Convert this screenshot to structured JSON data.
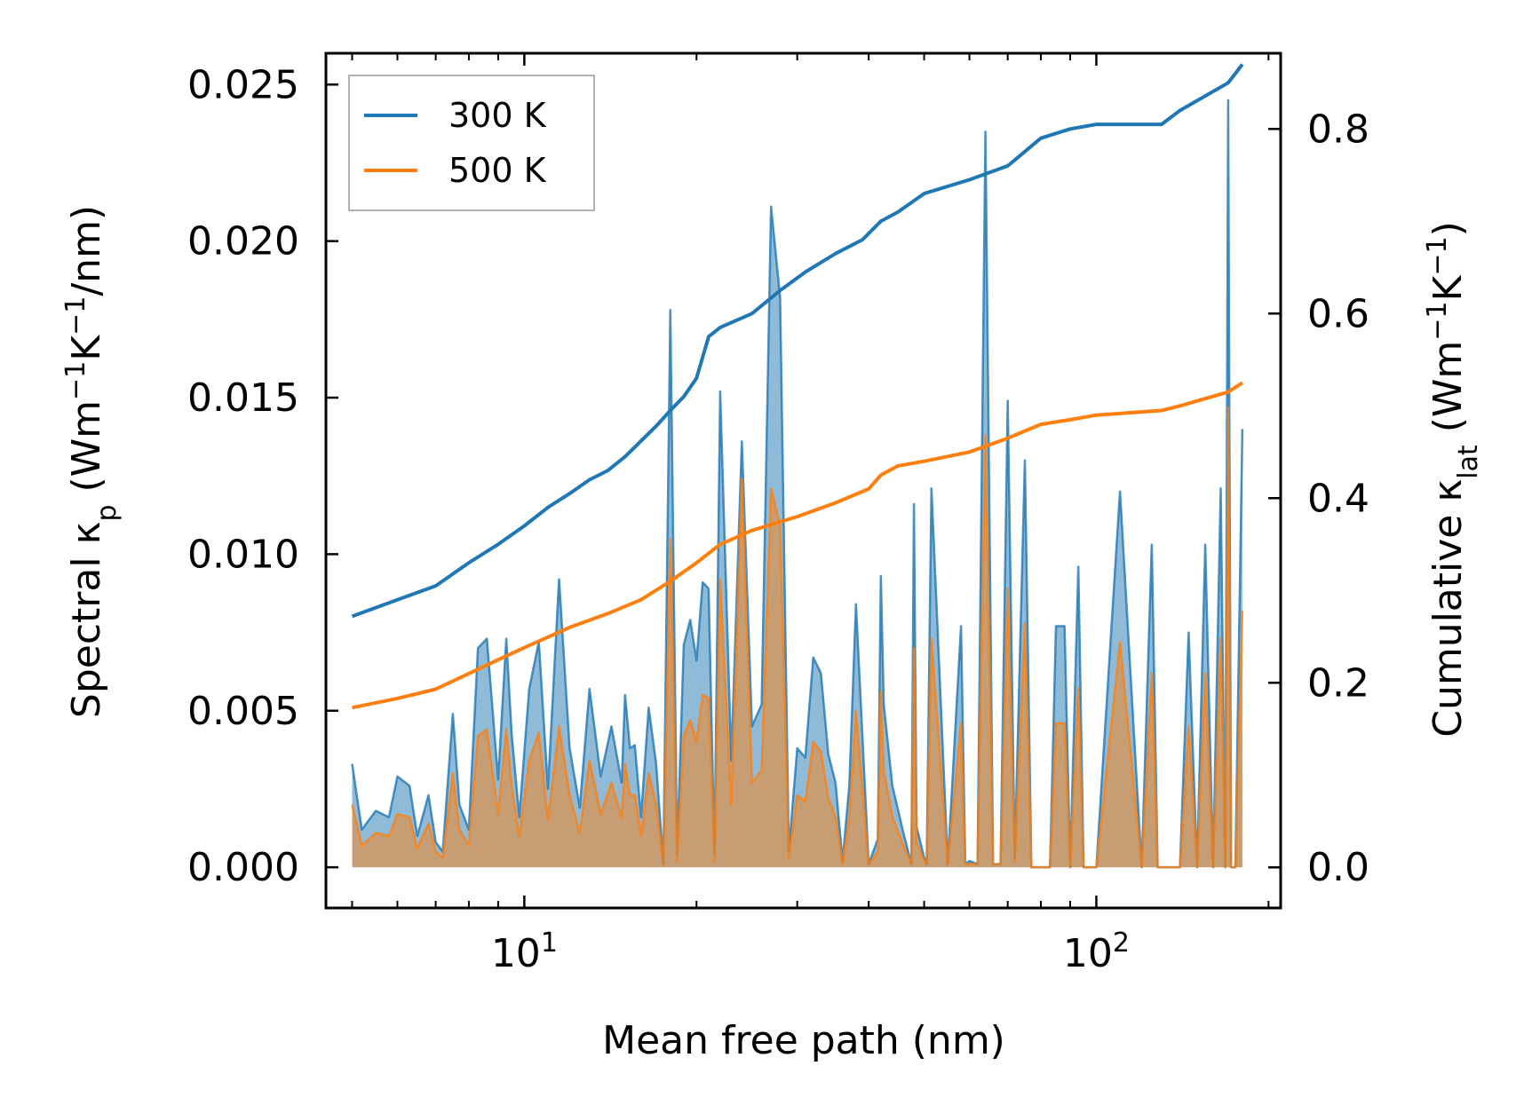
{
  "chart_data": {
    "type": "line",
    "xscale": "log",
    "xlim": [
      4.5,
      210
    ],
    "ylim_left": [
      -0.0013,
      0.026
    ],
    "ylim_right": [
      -0.044,
      0.882
    ],
    "xlabel": "Mean free path (nm)",
    "ylabel_left": {
      "prefix": "Spectral κ",
      "sub": "p",
      "mid": " (Wm",
      "sup1": "−1",
      "mid2": "K",
      "sup2": "−1",
      "suffix": "/nm)"
    },
    "ylabel_right": {
      "prefix": "Cumulative κ",
      "sub": "lat",
      "mid": " (Wm",
      "sup1": "−1",
      "mid2": "K",
      "sup2": "−1",
      "suffix": ")"
    },
    "x_ticks": [
      {
        "value": 10,
        "base": "10",
        "exp": "1"
      },
      {
        "value": 100,
        "base": "10",
        "exp": "2"
      }
    ],
    "y_ticks_left": [
      "0.000",
      "0.005",
      "0.010",
      "0.015",
      "0.020",
      "0.025"
    ],
    "y_ticks_right": [
      "0.0",
      "0.2",
      "0.4",
      "0.6",
      "0.8"
    ],
    "legend": [
      {
        "label": "300 K",
        "color": "#1f77b4"
      },
      {
        "label": "500 K",
        "color": "#ff7f0e"
      }
    ],
    "legend_position": "upper-left",
    "cumulative_series": [
      {
        "name": "300 K",
        "color": "#1f77b4",
        "x": [
          5,
          6,
          7,
          8,
          9,
          10,
          11,
          12,
          13,
          14,
          15,
          16,
          17,
          18,
          19,
          20,
          21,
          22,
          25,
          28,
          31,
          35,
          39,
          42,
          45,
          50,
          60,
          70,
          80,
          90,
          100,
          130,
          140,
          170,
          180
        ],
        "y": [
          0.272,
          0.29,
          0.305,
          0.33,
          0.35,
          0.37,
          0.39,
          0.405,
          0.42,
          0.43,
          0.445,
          0.462,
          0.478,
          0.495,
          0.51,
          0.53,
          0.575,
          0.585,
          0.6,
          0.625,
          0.645,
          0.665,
          0.68,
          0.7,
          0.71,
          0.73,
          0.745,
          0.76,
          0.79,
          0.8,
          0.805,
          0.805,
          0.82,
          0.85,
          0.87
        ]
      },
      {
        "name": "500 K",
        "color": "#ff7f0e",
        "x": [
          5,
          6,
          7,
          8,
          9,
          10,
          12,
          14,
          16,
          18,
          20,
          22,
          25,
          30,
          35,
          40,
          42,
          45,
          50,
          60,
          70,
          80,
          90,
          100,
          130,
          140,
          170,
          180
        ],
        "y": [
          0.173,
          0.183,
          0.193,
          0.21,
          0.225,
          0.238,
          0.26,
          0.275,
          0.29,
          0.31,
          0.33,
          0.35,
          0.365,
          0.38,
          0.395,
          0.41,
          0.425,
          0.435,
          0.44,
          0.45,
          0.465,
          0.48,
          0.485,
          0.49,
          0.495,
          0.5,
          0.515,
          0.525
        ]
      }
    ],
    "spectral_series": [
      {
        "name": "300 K",
        "color": "#1f77b4",
        "x": [
          5,
          5.2,
          5.5,
          5.8,
          6,
          6.3,
          6.5,
          6.8,
          7.0,
          7.2,
          7.5,
          7.7,
          8.0,
          8.3,
          8.6,
          9.0,
          9.3,
          9.5,
          9.8,
          10.2,
          10.6,
          11.0,
          11.5,
          12.0,
          12.5,
          13.0,
          13.6,
          14.2,
          14.8,
          15.0,
          15.3,
          15.6,
          16.0,
          16.5,
          17.0,
          17.5,
          18.0,
          18.5,
          19.0,
          19.5,
          20.0,
          20.5,
          21.0,
          21.5,
          22.0,
          23.0,
          24.0,
          25.0,
          26.0,
          27.0,
          28.0,
          29.0,
          30.0,
          31.0,
          32.0,
          33.0,
          34.0,
          35.0,
          36.0,
          37.0,
          38.0,
          40.0,
          41.5,
          42.0,
          42.5,
          44.0,
          46.0,
          47.5,
          48.0,
          48.5,
          50.0,
          50.5,
          51.5,
          55.0,
          58.0,
          59.0,
          60.0,
          62.0,
          64.0,
          66.0,
          68.0,
          70.0,
          72.0,
          75.0,
          77.0,
          80.0,
          83.0,
          85.0,
          88.0,
          90.0,
          93.0,
          95.0,
          100.0,
          110.0,
          120.0,
          125.0,
          128.0,
          131.0,
          135.0,
          140.0,
          145.0,
          150.0,
          155.0,
          160.0,
          165.0,
          168.0,
          170.0,
          172.0,
          175.0,
          180.0
        ],
        "y": [
          0.0033,
          0.0012,
          0.0018,
          0.0016,
          0.0029,
          0.0026,
          0.001,
          0.0023,
          0.0008,
          0.0005,
          0.0049,
          0.002,
          0.0012,
          0.007,
          0.0073,
          0.0028,
          0.0073,
          0.0043,
          0.0016,
          0.0057,
          0.0072,
          0.0025,
          0.0092,
          0.0038,
          0.0019,
          0.0057,
          0.0029,
          0.0045,
          0.0027,
          0.0055,
          0.0038,
          0.0039,
          0.0016,
          0.0051,
          0.0033,
          0.0001,
          0.0178,
          0.0004,
          0.0071,
          0.0079,
          0.0066,
          0.0091,
          0.0089,
          0.0004,
          0.0152,
          0.0034,
          0.0136,
          0.0045,
          0.0052,
          0.0211,
          0.0182,
          0.0005,
          0.0038,
          0.0035,
          0.0067,
          0.0062,
          0.0036,
          0.0027,
          0.0002,
          0.0026,
          0.0084,
          0.0001,
          0.0009,
          0.0093,
          0.0052,
          0.0026,
          0.0011,
          0.0001,
          0.0116,
          0.0013,
          0.0003,
          0.0001,
          0.0121,
          0.0001,
          0.0077,
          0.0001,
          0.0002,
          0.0001,
          0.0235,
          0.0001,
          0.0001,
          0.0149,
          0.0003,
          0.013,
          0.0,
          0.0,
          0.0,
          0.0077,
          0.0077,
          0.0,
          0.0096,
          0.0,
          0.0,
          0.012,
          0.0,
          0.0103,
          0.0,
          0.0,
          0.0,
          0.0,
          0.0075,
          0.0,
          0.0103,
          0.0,
          0.0121,
          0.0,
          0.0245,
          0.0,
          0.0,
          0.014
        ]
      },
      {
        "name": "500 K",
        "color": "#ff7f0e",
        "x": [
          5,
          5.2,
          5.5,
          5.8,
          6,
          6.3,
          6.5,
          6.8,
          7.0,
          7.2,
          7.5,
          7.7,
          8.0,
          8.3,
          8.6,
          9.0,
          9.3,
          9.5,
          9.8,
          10.2,
          10.6,
          11.0,
          11.5,
          12.0,
          12.5,
          13.0,
          13.6,
          14.2,
          14.8,
          15.0,
          15.3,
          15.6,
          16.0,
          16.5,
          17.0,
          17.5,
          18.0,
          18.5,
          19.0,
          19.5,
          20.0,
          20.5,
          21.0,
          21.5,
          22.0,
          23.0,
          24.0,
          25.0,
          26.0,
          27.0,
          28.0,
          29.0,
          30.0,
          31.0,
          32.0,
          33.0,
          34.0,
          35.0,
          36.0,
          37.0,
          38.0,
          40.0,
          41.5,
          42.0,
          42.5,
          44.0,
          46.0,
          47.5,
          48.0,
          48.5,
          50.0,
          50.5,
          51.5,
          55.0,
          58.0,
          59.0,
          60.0,
          62.0,
          64.0,
          66.0,
          68.0,
          70.0,
          72.0,
          75.0,
          77.0,
          80.0,
          83.0,
          85.0,
          88.0,
          90.0,
          93.0,
          95.0,
          100.0,
          110.0,
          120.0,
          125.0,
          128.0,
          131.0,
          135.0,
          140.0,
          145.0,
          150.0,
          155.0,
          160.0,
          165.0,
          168.0,
          170.0,
          172.0,
          175.0,
          180.0
        ],
        "y": [
          0.002,
          0.0007,
          0.0011,
          0.001,
          0.0017,
          0.0016,
          0.0006,
          0.0014,
          0.0005,
          0.0003,
          0.003,
          0.0012,
          0.0007,
          0.0042,
          0.0044,
          0.0017,
          0.0044,
          0.0026,
          0.001,
          0.0034,
          0.0043,
          0.0015,
          0.0045,
          0.0023,
          0.0011,
          0.0034,
          0.0017,
          0.0027,
          0.0016,
          0.0033,
          0.0023,
          0.0023,
          0.001,
          0.003,
          0.002,
          0.0001,
          0.0105,
          0.0002,
          0.0042,
          0.0047,
          0.004,
          0.0055,
          0.0054,
          0.0002,
          0.0092,
          0.002,
          0.0124,
          0.0027,
          0.0031,
          0.0121,
          0.0109,
          0.0003,
          0.0023,
          0.0021,
          0.004,
          0.0037,
          0.0022,
          0.0016,
          0.0001,
          0.0016,
          0.005,
          0.0001,
          0.0005,
          0.0056,
          0.0031,
          0.0016,
          0.0007,
          0.0001,
          0.007,
          0.0008,
          0.0002,
          0.0001,
          0.0073,
          0.0001,
          0.0046,
          0.0001,
          0.0001,
          0.0001,
          0.0138,
          0.0001,
          0.0001,
          0.0089,
          0.0002,
          0.0078,
          0.0,
          0.0,
          0.0,
          0.0046,
          0.0046,
          0.0,
          0.0057,
          0.0,
          0.0,
          0.0072,
          0.0,
          0.0062,
          0.0,
          0.0,
          0.0,
          0.0,
          0.0045,
          0.0,
          0.0062,
          0.0,
          0.0073,
          0.0,
          0.0147,
          0.0,
          0.0,
          0.0082
        ]
      }
    ]
  }
}
